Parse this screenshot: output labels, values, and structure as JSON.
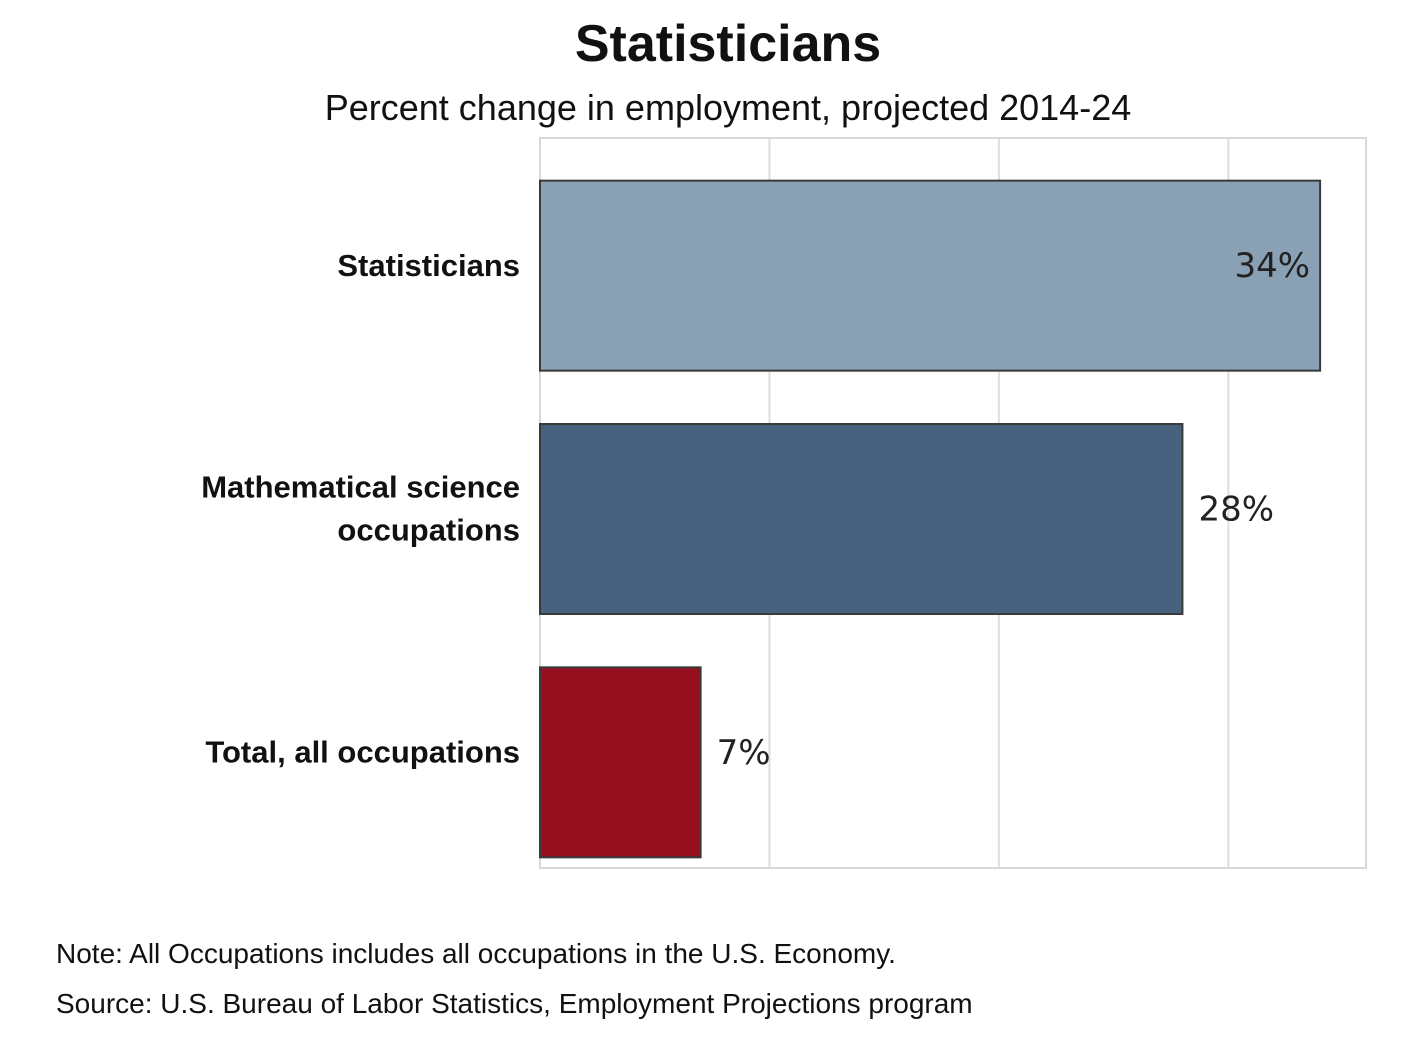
{
  "chart_data": {
    "type": "bar",
    "orientation": "horizontal",
    "title": "Statisticians",
    "subtitle": "Percent change in employment, projected 2014-24",
    "categories": [
      [
        "Statisticians"
      ],
      [
        "Mathematical science",
        "occupations"
      ],
      [
        "Total, all occupations"
      ]
    ],
    "values": [
      34,
      28,
      7
    ],
    "value_labels": [
      "34%",
      "28%",
      "7%"
    ],
    "colors": [
      "#8aa0b4",
      "#46627e",
      "#960f1e"
    ],
    "xlim": [
      0,
      36
    ],
    "grid": true,
    "xlabel": "",
    "ylabel": ""
  },
  "notes": {
    "note": "Note: All Occupations includes all occupations in the U.S. Economy.",
    "source": "Source: U.S. Bureau of Labor Statistics, Employment Projections program"
  }
}
